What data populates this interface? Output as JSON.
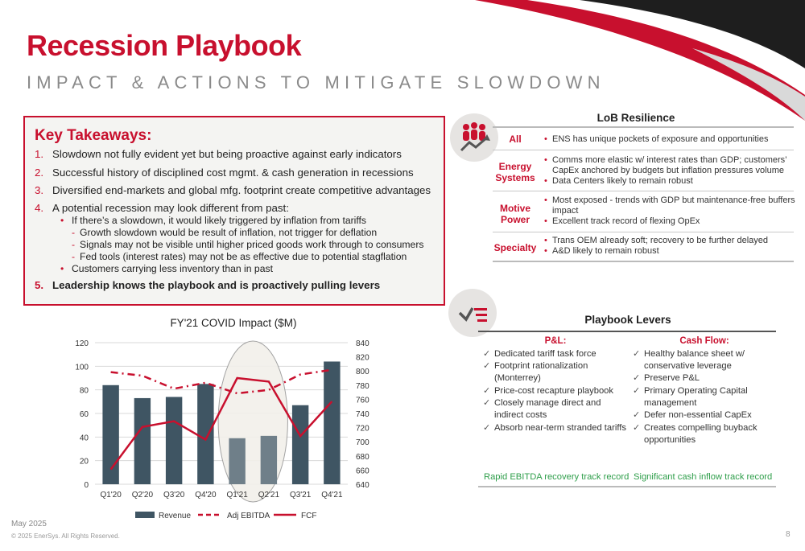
{
  "header": {
    "title": "Recession Playbook",
    "subtitle": "IMPACT & ACTIONS TO MITIGATE SLOWDOWN"
  },
  "key_takeaways": {
    "title": "Key Takeaways:",
    "items": [
      {
        "num": "1.",
        "text": "Slowdown not fully evident yet but being proactive against early indicators"
      },
      {
        "num": "2.",
        "text": "Successful history of disciplined cost mgmt. & cash generation in recessions"
      },
      {
        "num": "3.",
        "text": "Diversified end-markets and global mfg. footprint create competitive advantages"
      },
      {
        "num": "4.",
        "text": "A potential recession may look different from past:"
      },
      {
        "num": "5.",
        "text": "Leadership knows the playbook and is proactively pulling levers"
      }
    ],
    "sub_bullets": [
      {
        "text": "If there’s a slowdown, it would likely triggered by inflation from tariffs"
      },
      {
        "text": "Customers carrying less inventory than in past"
      }
    ],
    "dashes": [
      {
        "text": "Growth slowdown would be result of inflation, not trigger for deflation"
      },
      {
        "text": "Signals may not be visible until higher priced goods work through to consumers"
      },
      {
        "text": "Fed tools (interest rates) may not be as effective due to potential stagflation"
      }
    ],
    "bullet_symbol": "•",
    "dash_symbol": "-"
  },
  "lob": {
    "title": "LoB Resilience",
    "rows": [
      {
        "label": "All",
        "lines": [
          "ENS has unique pockets of exposure and opportunities"
        ]
      },
      {
        "label": "Energy Systems",
        "lines": [
          "Comms more elastic w/ interest rates than GDP; customers’",
          "CapEx anchored by budgets but inflation pressures volume",
          "Data Centers likely to remain robust"
        ]
      },
      {
        "label": "Motive Power",
        "lines": [
          "Most exposed - trends with GDP but maintenance-free buffers",
          "impact",
          "Excellent track record of flexing OpEx"
        ]
      },
      {
        "label": "Specialty",
        "lines": [
          "Trans OEM already soft; recovery to be further delayed",
          "A&D likely to remain robust"
        ]
      }
    ]
  },
  "playbook": {
    "title": "Playbook Levers",
    "pl_head": "P&L:",
    "cf_head": "Cash Flow:",
    "pl_items": [
      "Dedicated tariff task force",
      "Footprint rationalization",
      "(Monterrey)",
      "Price-cost recapture playbook",
      "Closely manage direct and",
      "indirect costs",
      "Absorb near-term stranded tariffs"
    ],
    "cf_items": [
      "Healthy balance sheet w/",
      "conservative leverage",
      "Preserve P&L",
      "Primary Operating Capital",
      "management",
      "Defer non-essential CapEx",
      "Creates compelling buyback",
      "opportunities"
    ],
    "pl_foot": "Rapid EBITDA recovery track record",
    "cf_foot": "Significant cash inflow track record",
    "check": "✓"
  },
  "chart_data": {
    "type": "bar",
    "title": "FY'21 COVID Impact ($M)",
    "categories": [
      "Q1'20",
      "Q2'20",
      "Q3'20",
      "Q4'20",
      "Q1'21",
      "Q2'21",
      "Q3'21",
      "Q4'21"
    ],
    "series": [
      {
        "name": "Revenue",
        "type": "bar",
        "axis": "left",
        "values": [
          84,
          73,
          74,
          85,
          39,
          41,
          67,
          104
        ],
        "color": "#3f5563",
        "highlight_color": "#6f7f89"
      },
      {
        "name": "Adj EBITDA",
        "type": "line-dashed",
        "axis": "left",
        "values": [
          95,
          92,
          81,
          86,
          77,
          80,
          93,
          97
        ],
        "color": "#c8102e"
      },
      {
        "name": "FCF",
        "type": "line",
        "axis": "right",
        "values": [
          661,
          721,
          729,
          703,
          790,
          785,
          708,
          757
        ],
        "color": "#c8102e"
      }
    ],
    "y_left": {
      "min": 0,
      "max": 120,
      "ticks": [
        0,
        20,
        40,
        60,
        80,
        100,
        120
      ]
    },
    "y_right": {
      "min": 640,
      "max": 840,
      "ticks": [
        640,
        660,
        680,
        700,
        720,
        740,
        760,
        780,
        800,
        820,
        840
      ]
    },
    "highlight_categories": [
      "Q1'21",
      "Q2'21"
    ],
    "legend_position": "bottom"
  },
  "footer": {
    "date": "May 2025",
    "copyright": "© 2025 EnerSys. All Rights Reserved.",
    "page": "8"
  },
  "colors": {
    "brand_red": "#c8102e",
    "dark": "#1a1a1a",
    "green": "#2e9e4a"
  }
}
